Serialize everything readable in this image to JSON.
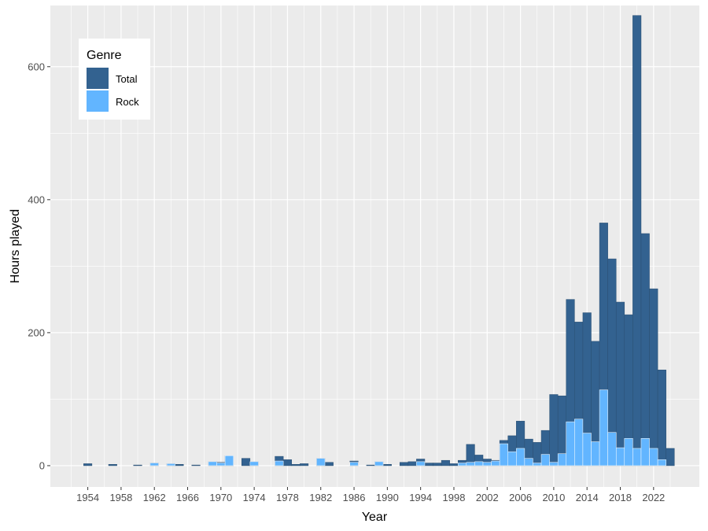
{
  "chart_data": {
    "type": "bar",
    "xlabel": "Year",
    "ylabel": "Hours played",
    "x_ticks": [
      1954,
      1958,
      1962,
      1966,
      1970,
      1974,
      1978,
      1982,
      1986,
      1990,
      1994,
      1998,
      2002,
      2006,
      2010,
      2014,
      2018,
      2022
    ],
    "y_ticks": [
      0,
      200,
      400,
      600
    ],
    "ylim": [
      -32,
      692
    ],
    "xlim": [
      1949.5,
      2027.5
    ],
    "grid": true,
    "legend": {
      "title": "Genre",
      "position": "top-left",
      "entries": [
        {
          "label": "Total",
          "color": "#336290"
        },
        {
          "label": "Rock",
          "color": "#62B5FF"
        }
      ]
    },
    "series": [
      {
        "name": "Total",
        "color": "#336290",
        "x": [
          1954,
          1957,
          1960,
          1962,
          1964,
          1965,
          1967,
          1969,
          1970,
          1971,
          1973,
          1974,
          1977,
          1978,
          1979,
          1980,
          1982,
          1983,
          1986,
          1988,
          1989,
          1990,
          1992,
          1993,
          1994,
          1995,
          1996,
          1997,
          1998,
          1999,
          2000,
          2001,
          2002,
          2003,
          2004,
          2005,
          2006,
          2007,
          2008,
          2009,
          2010,
          2011,
          2012,
          2013,
          2014,
          2015,
          2016,
          2017,
          2018,
          2019,
          2020,
          2021,
          2022,
          2023,
          2024
        ],
        "values": [
          3,
          2,
          1,
          4,
          3,
          2,
          1,
          6,
          5,
          15,
          11,
          6,
          14,
          9,
          2,
          3,
          11,
          5,
          7,
          1,
          6,
          2,
          5,
          6,
          10,
          4,
          4,
          8,
          3,
          8,
          32,
          16,
          10,
          8,
          38,
          45,
          67,
          40,
          35,
          53,
          107,
          105,
          250,
          216,
          230,
          187,
          365,
          311,
          246,
          227,
          677,
          349,
          266,
          144,
          26
        ]
      },
      {
        "name": "Rock",
        "color": "#62B5FF",
        "x": [
          1962,
          1964,
          1969,
          1970,
          1971,
          1974,
          1977,
          1982,
          1986,
          1989,
          1994,
          1999,
          2000,
          2001,
          2002,
          2003,
          2004,
          2005,
          2006,
          2007,
          2008,
          2009,
          2010,
          2011,
          2012,
          2013,
          2014,
          2015,
          2016,
          2017,
          2018,
          2019,
          2020,
          2021,
          2022,
          2023
        ],
        "values": [
          4,
          3,
          6,
          4,
          15,
          6,
          7,
          11,
          5,
          6,
          6,
          4,
          5,
          6,
          5,
          7,
          33,
          21,
          26,
          11,
          4,
          17,
          5,
          18,
          66,
          70,
          49,
          36,
          114,
          50,
          27,
          41,
          26,
          41,
          26,
          9
        ]
      }
    ]
  }
}
